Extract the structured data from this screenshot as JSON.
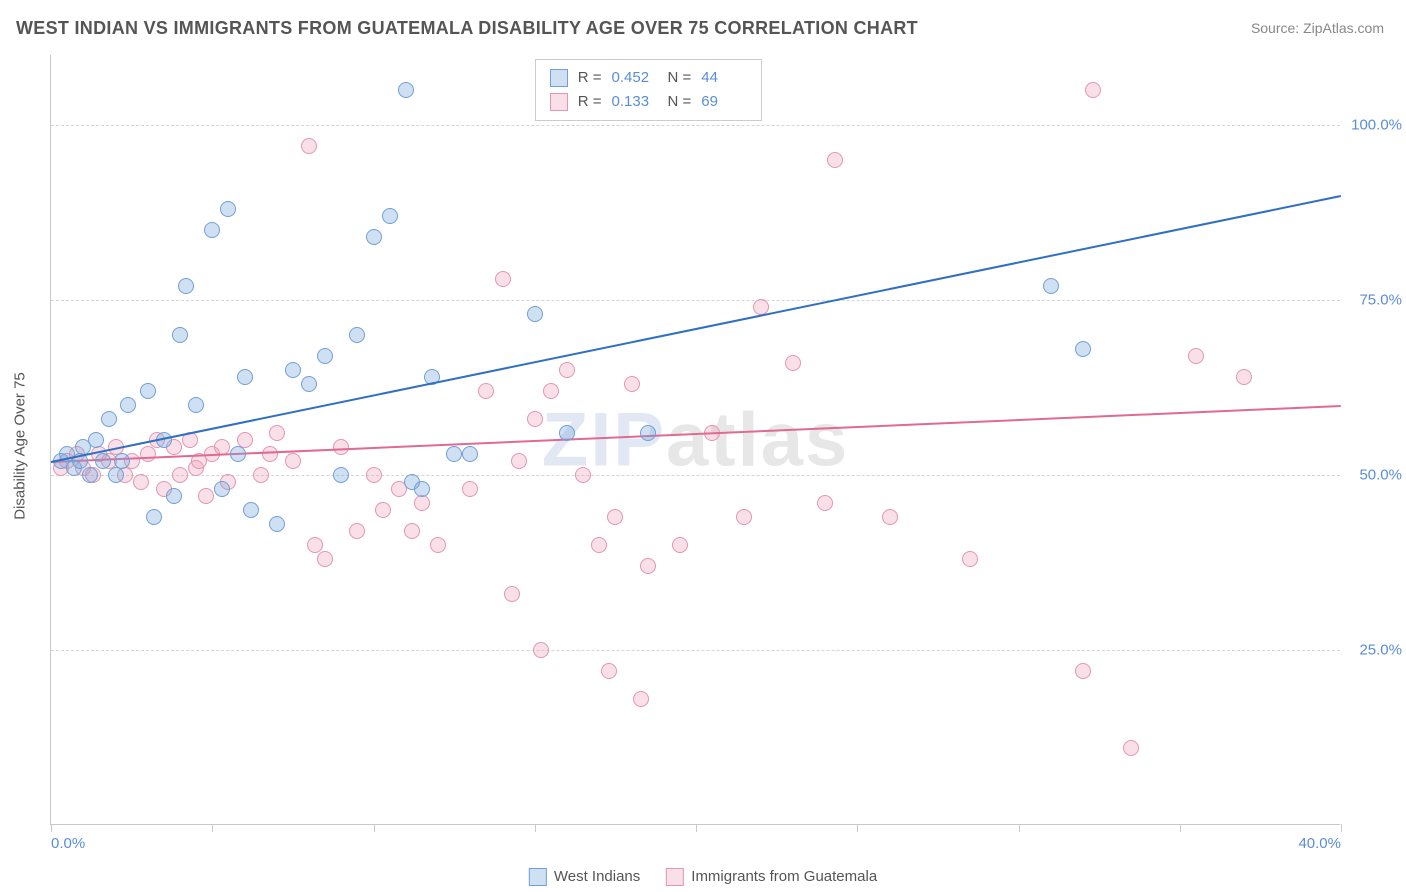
{
  "title": "WEST INDIAN VS IMMIGRANTS FROM GUATEMALA DISABILITY AGE OVER 75 CORRELATION CHART",
  "source_prefix": "Source: ",
  "source_name": "ZipAtlas.com",
  "yaxis_label": "Disability Age Over 75",
  "watermark": {
    "first": "ZIP",
    "rest": "atlas"
  },
  "chart": {
    "type": "scatter",
    "background_color": "#ffffff",
    "grid_color": "#d5d5d5",
    "axis_color": "#c9c9c9",
    "tick_label_color": "#5b8dd6",
    "axis_label_color": "#555555",
    "xlim": [
      0,
      40
    ],
    "ylim": [
      0,
      110
    ],
    "yticks": [
      25,
      50,
      75,
      100
    ],
    "ytick_labels": [
      "25.0%",
      "50.0%",
      "75.0%",
      "100.0%"
    ],
    "xticks": [
      0,
      5,
      10,
      15,
      20,
      25,
      30,
      35,
      40
    ],
    "xtick_labels_shown": {
      "0": "0.0%",
      "40": "40.0%"
    },
    "marker_radius": 8,
    "marker_stroke_width": 1.2,
    "line_width": 2,
    "title_fontsize": 18,
    "label_fontsize": 15
  },
  "series": {
    "blue": {
      "label": "West Indians",
      "fill": "rgba(120,165,222,0.35)",
      "stroke": "#6f9fd8",
      "line_color": "#2f6fc4",
      "R": "0.452",
      "N": "44",
      "trend": {
        "x1": 0,
        "y1": 52,
        "x2": 40,
        "y2": 90
      },
      "points": [
        [
          0.3,
          52
        ],
        [
          0.5,
          53
        ],
        [
          0.7,
          51
        ],
        [
          0.9,
          52
        ],
        [
          1.0,
          54
        ],
        [
          1.2,
          50
        ],
        [
          1.4,
          55
        ],
        [
          1.8,
          58
        ],
        [
          2.2,
          52
        ],
        [
          2.4,
          60
        ],
        [
          3.0,
          62
        ],
        [
          3.2,
          44
        ],
        [
          3.5,
          55
        ],
        [
          3.8,
          47
        ],
        [
          4.0,
          70
        ],
        [
          4.2,
          77
        ],
        [
          4.5,
          60
        ],
        [
          5.0,
          85
        ],
        [
          5.3,
          48
        ],
        [
          5.5,
          88
        ],
        [
          5.8,
          53
        ],
        [
          6.0,
          64
        ],
        [
          6.2,
          45
        ],
        [
          7.0,
          43
        ],
        [
          7.5,
          65
        ],
        [
          8.0,
          63
        ],
        [
          8.5,
          67
        ],
        [
          9.0,
          50
        ],
        [
          9.5,
          70
        ],
        [
          10.0,
          84
        ],
        [
          10.5,
          87
        ],
        [
          11.0,
          105
        ],
        [
          11.2,
          49
        ],
        [
          11.5,
          48
        ],
        [
          11.8,
          64
        ],
        [
          12.5,
          53
        ],
        [
          13.0,
          53
        ],
        [
          15.0,
          73
        ],
        [
          16.0,
          56
        ],
        [
          18.5,
          56
        ],
        [
          31.0,
          77
        ],
        [
          32.0,
          68
        ],
        [
          2.0,
          50
        ],
        [
          1.6,
          52
        ]
      ]
    },
    "pink": {
      "label": "Immigrants from Guatemala",
      "fill": "rgba(237,160,185,0.32)",
      "stroke": "#e495b0",
      "line_color": "#e06a92",
      "R": "0.133",
      "N": "69",
      "trend": {
        "x1": 0,
        "y1": 52,
        "x2": 40,
        "y2": 60
      },
      "points": [
        [
          0.3,
          51
        ],
        [
          0.5,
          52
        ],
        [
          0.8,
          53
        ],
        [
          1.0,
          51
        ],
        [
          1.3,
          50
        ],
        [
          1.5,
          53
        ],
        [
          1.8,
          52
        ],
        [
          2.0,
          54
        ],
        [
          2.3,
          50
        ],
        [
          2.5,
          52
        ],
        [
          2.8,
          49
        ],
        [
          3.0,
          53
        ],
        [
          3.3,
          55
        ],
        [
          3.5,
          48
        ],
        [
          3.8,
          54
        ],
        [
          4.0,
          50
        ],
        [
          4.3,
          55
        ],
        [
          4.5,
          51
        ],
        [
          4.8,
          47
        ],
        [
          5.0,
          53
        ],
        [
          5.3,
          54
        ],
        [
          5.5,
          49
        ],
        [
          6.0,
          55
        ],
        [
          6.5,
          50
        ],
        [
          7.0,
          56
        ],
        [
          7.5,
          52
        ],
        [
          8.0,
          97
        ],
        [
          8.2,
          40
        ],
        [
          8.5,
          38
        ],
        [
          9.0,
          54
        ],
        [
          9.5,
          42
        ],
        [
          10.0,
          50
        ],
        [
          10.3,
          45
        ],
        [
          10.8,
          48
        ],
        [
          11.2,
          42
        ],
        [
          11.5,
          46
        ],
        [
          12.0,
          40
        ],
        [
          13.0,
          48
        ],
        [
          13.5,
          62
        ],
        [
          14.0,
          78
        ],
        [
          14.3,
          33
        ],
        [
          14.5,
          52
        ],
        [
          15.0,
          58
        ],
        [
          15.2,
          25
        ],
        [
          15.5,
          62
        ],
        [
          16.0,
          65
        ],
        [
          16.5,
          50
        ],
        [
          17.0,
          40
        ],
        [
          17.3,
          22
        ],
        [
          17.5,
          44
        ],
        [
          18.0,
          63
        ],
        [
          18.3,
          18
        ],
        [
          18.5,
          37
        ],
        [
          19.5,
          40
        ],
        [
          20.5,
          56
        ],
        [
          21.5,
          44
        ],
        [
          22.0,
          74
        ],
        [
          23.0,
          66
        ],
        [
          24.0,
          46
        ],
        [
          24.3,
          95
        ],
        [
          26.0,
          44
        ],
        [
          28.5,
          38
        ],
        [
          32.0,
          22
        ],
        [
          32.3,
          105
        ],
        [
          33.5,
          11
        ],
        [
          35.5,
          67
        ],
        [
          37.0,
          64
        ],
        [
          4.6,
          52
        ],
        [
          6.8,
          53
        ]
      ]
    }
  },
  "legend_top": {
    "R_label": "R =",
    "N_label": "N ="
  }
}
